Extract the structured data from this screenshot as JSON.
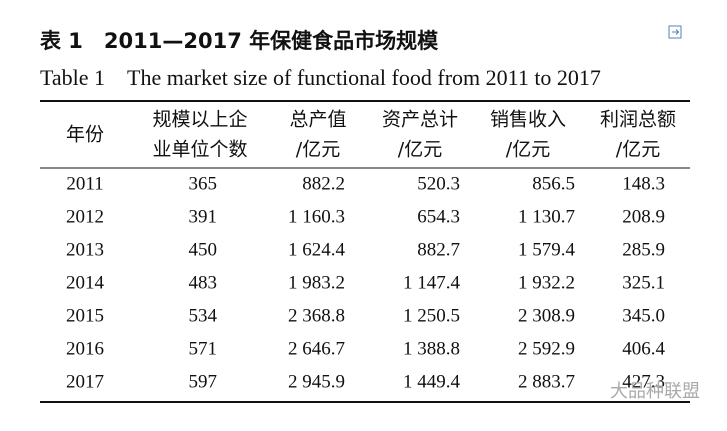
{
  "title": "表 1　2011—2017 年保健食品市场规模",
  "subtitle": "Table 1　The market size of functional food from 2011 to 2017",
  "table": {
    "header": [
      [
        "年份"
      ],
      [
        "规模以上企",
        "业单位个数"
      ],
      [
        "总产值",
        "/亿元"
      ],
      [
        "资产总计",
        "/亿元"
      ],
      [
        "销售收入",
        "/亿元"
      ],
      [
        "利润总额",
        "/亿元"
      ]
    ],
    "rows": [
      [
        "2011",
        "365",
        "882.2",
        "520.3",
        "856.5",
        "148.3"
      ],
      [
        "2012",
        "391",
        "1 160.3",
        "654.3",
        "1 130.7",
        "208.9"
      ],
      [
        "2013",
        "450",
        "1 624.4",
        "882.7",
        "1 579.4",
        "285.9"
      ],
      [
        "2014",
        "483",
        "1 983.2",
        "1 147.4",
        "1 932.2",
        "325.1"
      ],
      [
        "2015",
        "534",
        "2 368.8",
        "1 250.5",
        "2 308.9",
        "345.0"
      ],
      [
        "2016",
        "571",
        "2 646.7",
        "1 388.8",
        "2 592.9",
        "406.4"
      ],
      [
        "2017",
        "597",
        "2 945.9",
        "1 449.4",
        "2 883.7",
        "427.3"
      ]
    ]
  },
  "watermark": "大品种联盟"
}
